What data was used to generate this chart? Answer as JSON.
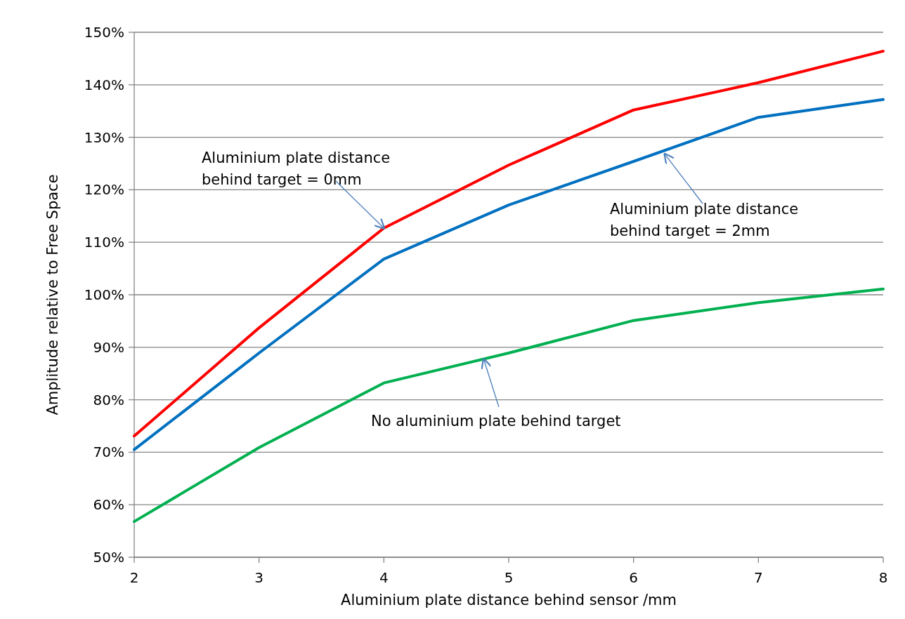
{
  "chart_data": {
    "type": "line",
    "xlabel": "Aluminium plate distance behind sensor /mm",
    "ylabel": "Amplitude relative to Free Space",
    "x": [
      2,
      3,
      4,
      5,
      6,
      7,
      8
    ],
    "series": [
      {
        "color": "#ff0000",
        "values": [
          73.1,
          93.7,
          112.7,
          124.7,
          135.2,
          140.4,
          146.4
        ]
      },
      {
        "color": "#0070c0",
        "values": [
          70.5,
          88.9,
          106.8,
          117.1,
          125.4,
          133.8,
          137.2
        ]
      },
      {
        "color": "#00b050",
        "values": [
          56.8,
          70.9,
          83.2,
          88.9,
          95.1,
          98.5,
          101.1
        ]
      }
    ],
    "annotations": [
      {
        "text": "Aluminium plate distance\nbehind target = 0mm",
        "x": 4,
        "y": 112.7
      },
      {
        "text": "Aluminium plate distance\nbehind target = 2mm",
        "x": 6.25,
        "y": 126.8
      },
      {
        "text": "No aluminium plate behind target",
        "x": 4.8,
        "y": 87.7
      }
    ],
    "xlim": [
      2,
      8
    ],
    "xticks": [
      2,
      3,
      4,
      5,
      6,
      7,
      8
    ],
    "ylim": [
      50,
      150
    ],
    "yticks": [
      {
        "value": 50,
        "label": "50%"
      },
      {
        "value": 60,
        "label": "60%"
      },
      {
        "value": 70,
        "label": "70%"
      },
      {
        "value": 80,
        "label": "80%"
      },
      {
        "value": 90,
        "label": "90%"
      },
      {
        "value": 100,
        "label": "100%"
      },
      {
        "value": 110,
        "label": "110%"
      },
      {
        "value": 120,
        "label": "120%"
      },
      {
        "value": 130,
        "label": "130%"
      },
      {
        "value": 140,
        "label": "140%"
      },
      {
        "value": 150,
        "label": "150%"
      }
    ],
    "grid": "y",
    "marker": "none",
    "line_style": "solid"
  }
}
